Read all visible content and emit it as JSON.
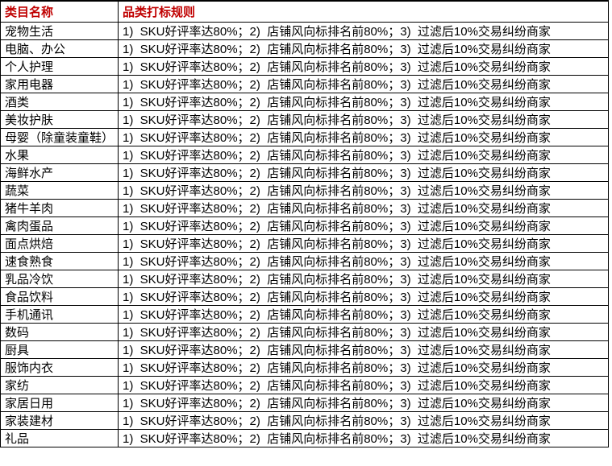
{
  "page": {
    "background_color": "#ffffff",
    "border_color": "#000000",
    "header_text_color": "#C00000",
    "body_text_color": "#000000"
  },
  "table": {
    "header": {
      "category": "类目名称",
      "rule": "品类打标规则"
    },
    "rows": [
      {
        "category": "宠物生活",
        "rule": "1)  SKU好评率达80%；2)  店铺风向标排名前80%；3)  过滤后10%交易纠纷商家"
      },
      {
        "category": "电脑、办公",
        "rule": "1)  SKU好评率达80%；2)  店铺风向标排名前80%；3)  过滤后10%交易纠纷商家"
      },
      {
        "category": "个人护理",
        "rule": "1)  SKU好评率达80%；2)  店铺风向标排名前80%；3)  过滤后10%交易纠纷商家"
      },
      {
        "category": "家用电器",
        "rule": "1)  SKU好评率达80%；2)  店铺风向标排名前80%；3)  过滤后10%交易纠纷商家"
      },
      {
        "category": "酒类",
        "rule": "1)  SKU好评率达80%；2)  店铺风向标排名前80%；3)  过滤后10%交易纠纷商家"
      },
      {
        "category": "美妆护肤",
        "rule": "1)  SKU好评率达80%；2)  店铺风向标排名前80%；3)  过滤后10%交易纠纷商家"
      },
      {
        "category": "母婴（除童装童鞋）",
        "rule": "1)  SKU好评率达80%；2)  店铺风向标排名前80%；3)  过滤后10%交易纠纷商家"
      },
      {
        "category": "水果",
        "rule": "1)  SKU好评率达80%；2)  店铺风向标排名前80%；3)  过滤后10%交易纠纷商家"
      },
      {
        "category": "海鲜水产",
        "rule": "1)  SKU好评率达80%；2)  店铺风向标排名前80%；3)  过滤后10%交易纠纷商家"
      },
      {
        "category": "蔬菜",
        "rule": "1)  SKU好评率达80%；2)  店铺风向标排名前80%；3)  过滤后10%交易纠纷商家"
      },
      {
        "category": "猪牛羊肉",
        "rule": "1)  SKU好评率达80%；2)  店铺风向标排名前80%；3)  过滤后10%交易纠纷商家"
      },
      {
        "category": "禽肉蛋品",
        "rule": "1)  SKU好评率达80%；2)  店铺风向标排名前80%；3)  过滤后10%交易纠纷商家"
      },
      {
        "category": "面点烘焙",
        "rule": "1)  SKU好评率达80%；2)  店铺风向标排名前80%；3)  过滤后10%交易纠纷商家"
      },
      {
        "category": "速食熟食",
        "rule": "1)  SKU好评率达80%；2)  店铺风向标排名前80%；3)  过滤后10%交易纠纷商家"
      },
      {
        "category": "乳品冷饮",
        "rule": "1)  SKU好评率达80%；2)  店铺风向标排名前80%；3)  过滤后10%交易纠纷商家"
      },
      {
        "category": "食品饮料",
        "rule": "1)  SKU好评率达80%；2)  店铺风向标排名前80%；3)  过滤后10%交易纠纷商家"
      },
      {
        "category": "手机通讯",
        "rule": "1)  SKU好评率达80%；2)  店铺风向标排名前80%；3)  过滤后10%交易纠纷商家"
      },
      {
        "category": "数码",
        "rule": "1)  SKU好评率达80%；2)  店铺风向标排名前80%；3)  过滤后10%交易纠纷商家"
      },
      {
        "category": "厨具",
        "rule": "1)  SKU好评率达80%；2)  店铺风向标排名前80%；3)  过滤后10%交易纠纷商家"
      },
      {
        "category": "服饰内衣",
        "rule": "1)  SKU好评率达80%；2)  店铺风向标排名前80%；3)  过滤后10%交易纠纷商家"
      },
      {
        "category": "家纺",
        "rule": "1)  SKU好评率达80%；2)  店铺风向标排名前80%；3)  过滤后10%交易纠纷商家"
      },
      {
        "category": "家居日用",
        "rule": "1)  SKU好评率达80%；2)  店铺风向标排名前80%；3)  过滤后10%交易纠纷商家"
      },
      {
        "category": "家装建材",
        "rule": "1)  SKU好评率达80%；2)  店铺风向标排名前80%；3)  过滤后10%交易纠纷商家"
      },
      {
        "category": "礼品",
        "rule": "1)  SKU好评率达80%；2)  店铺风向标排名前80%；3)  过滤后10%交易纠纷商家"
      }
    ]
  }
}
